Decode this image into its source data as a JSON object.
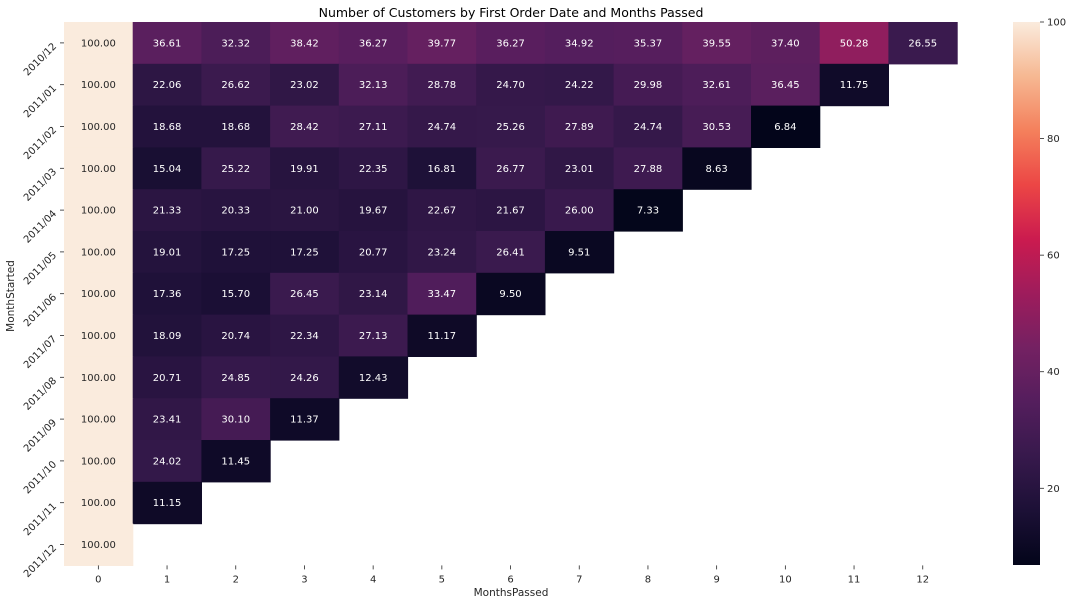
{
  "chart_data": {
    "type": "heatmap",
    "title": "Number of Customers by First Order Date and Months Passed",
    "xlabel": "MonthsPassed",
    "ylabel": "MonthStarted",
    "x": [
      "0",
      "1",
      "2",
      "3",
      "4",
      "5",
      "6",
      "7",
      "8",
      "9",
      "10",
      "11",
      "12"
    ],
    "y": [
      "2010/12",
      "2011/01",
      "2011/02",
      "2011/03",
      "2011/04",
      "2011/05",
      "2011/06",
      "2011/07",
      "2011/08",
      "2011/09",
      "2011/10",
      "2011/11",
      "2011/12"
    ],
    "values": [
      [
        100.0,
        36.61,
        32.32,
        38.42,
        36.27,
        39.77,
        36.27,
        34.92,
        35.37,
        39.55,
        37.4,
        50.28,
        26.55
      ],
      [
        100.0,
        22.06,
        26.62,
        23.02,
        32.13,
        28.78,
        24.7,
        24.22,
        29.98,
        32.61,
        36.45,
        11.75,
        null
      ],
      [
        100.0,
        18.68,
        18.68,
        28.42,
        27.11,
        24.74,
        25.26,
        27.89,
        24.74,
        30.53,
        6.84,
        null,
        null
      ],
      [
        100.0,
        15.04,
        25.22,
        19.91,
        22.35,
        16.81,
        26.77,
        23.01,
        27.88,
        8.63,
        null,
        null,
        null
      ],
      [
        100.0,
        21.33,
        20.33,
        21.0,
        19.67,
        22.67,
        21.67,
        26.0,
        7.33,
        null,
        null,
        null,
        null
      ],
      [
        100.0,
        19.01,
        17.25,
        17.25,
        20.77,
        23.24,
        26.41,
        9.51,
        null,
        null,
        null,
        null,
        null
      ],
      [
        100.0,
        17.36,
        15.7,
        26.45,
        23.14,
        33.47,
        9.5,
        null,
        null,
        null,
        null,
        null,
        null
      ],
      [
        100.0,
        18.09,
        20.74,
        22.34,
        27.13,
        11.17,
        null,
        null,
        null,
        null,
        null,
        null,
        null
      ],
      [
        100.0,
        20.71,
        24.85,
        24.26,
        12.43,
        null,
        null,
        null,
        null,
        null,
        null,
        null,
        null
      ],
      [
        100.0,
        23.41,
        30.1,
        11.37,
        null,
        null,
        null,
        null,
        null,
        null,
        null,
        null,
        null
      ],
      [
        100.0,
        24.02,
        11.45,
        null,
        null,
        null,
        null,
        null,
        null,
        null,
        null,
        null,
        null
      ],
      [
        100.0,
        11.15,
        null,
        null,
        null,
        null,
        null,
        null,
        null,
        null,
        null,
        null,
        null
      ],
      [
        100.0,
        null,
        null,
        null,
        null,
        null,
        null,
        null,
        null,
        null,
        null,
        null,
        null
      ]
    ],
    "colorbar": {
      "ticks": [
        20,
        40,
        60,
        80,
        100
      ],
      "vmin": 6.84,
      "vmax": 100
    },
    "colormap": "rocket",
    "value_format": "2 decimals"
  }
}
